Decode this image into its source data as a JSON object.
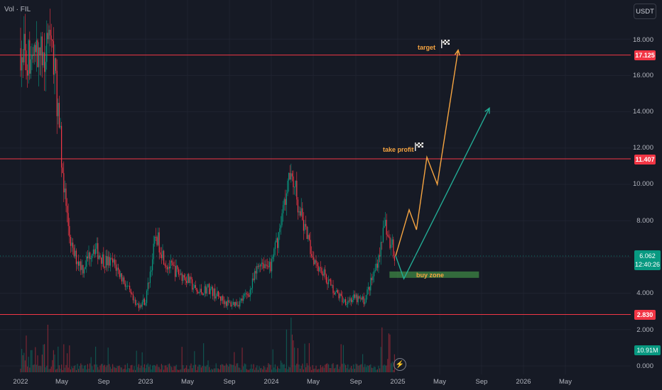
{
  "top_label": "Vol · FIL",
  "currency": "USDT",
  "chart_data": {
    "type": "candlestick",
    "y_axis": {
      "ticks": [
        "18.000",
        "16.000",
        "14.000",
        "12.000",
        "10.000",
        "8.000",
        "4.000",
        "2.000",
        "0.000"
      ]
    },
    "x_axis": {
      "ticks": [
        "2022",
        "May",
        "Sep",
        "2023",
        "May",
        "Sep",
        "2024",
        "May",
        "Sep",
        "2025",
        "May",
        "Sep",
        "2026",
        "May"
      ]
    },
    "price_path": [
      [
        "2022-01",
        17.5
      ],
      [
        "2022-02",
        16.8
      ],
      [
        "2022-03",
        17.2
      ],
      [
        "2022-04",
        17.6
      ],
      [
        "2022-04-20",
        14.0
      ],
      [
        "2022-05-05",
        10.0
      ],
      [
        "2022-05-20",
        7.5
      ],
      [
        "2022-06",
        6.2
      ],
      [
        "2022-07",
        5.4
      ],
      [
        "2022-08",
        6.6
      ],
      [
        "2022-09",
        5.8
      ],
      [
        "2022-10",
        5.6
      ],
      [
        "2022-11",
        4.6
      ],
      [
        "2022-12",
        3.3
      ],
      [
        "2023-01",
        3.6
      ],
      [
        "2023-02",
        7.2
      ],
      [
        "2023-03",
        5.6
      ],
      [
        "2023-04",
        5.2
      ],
      [
        "2023-05",
        4.8
      ],
      [
        "2023-06",
        4.0
      ],
      [
        "2023-07",
        4.3
      ],
      [
        "2023-08",
        3.8
      ],
      [
        "2023-09",
        3.4
      ],
      [
        "2023-10",
        3.5
      ],
      [
        "2023-11",
        4.1
      ],
      [
        "2023-12",
        5.8
      ],
      [
        "2024-01",
        5.4
      ],
      [
        "2024-02",
        7.8
      ],
      [
        "2024-03",
        10.8
      ],
      [
        "2024-04",
        8.0
      ],
      [
        "2024-05",
        6.1
      ],
      [
        "2024-06",
        5.2
      ],
      [
        "2024-07",
        4.2
      ],
      [
        "2024-08",
        3.6
      ],
      [
        "2024-09",
        3.7
      ],
      [
        "2024-10",
        3.6
      ],
      [
        "2024-11",
        5.2
      ],
      [
        "2024-12",
        7.6
      ],
      [
        "2025-01",
        6.062
      ]
    ],
    "horizontal_levels": [
      {
        "value": 17.125,
        "label": "17.125",
        "color": "#f23645"
      },
      {
        "value": 11.407,
        "label": "11.407",
        "color": "#f23645"
      },
      {
        "value": 2.83,
        "label": "2.830",
        "color": "#f23645"
      }
    ],
    "current_price": {
      "value": "6.062",
      "countdown": "12:40:26",
      "color": "#089981"
    },
    "volume_label": "10.91M",
    "projections": [
      {
        "name": "orange",
        "color": "#f7a541",
        "points": [
          [
            "2025-01",
            6.062
          ],
          [
            "2025-02-10",
            8.6
          ],
          [
            "2025-03",
            7.5
          ],
          [
            "2025-04",
            11.5
          ],
          [
            "2025-05",
            10.0
          ],
          [
            "2025-07",
            17.4
          ]
        ]
      },
      {
        "name": "teal",
        "color": "#22ab94",
        "points": [
          [
            "2025-01",
            6.062
          ],
          [
            "2025-01-25",
            4.8
          ],
          [
            "2025-10",
            14.2
          ]
        ]
      }
    ],
    "buy_zone": {
      "label": "buy zone",
      "from": 4.85,
      "to": 5.2,
      "start": "2024-12",
      "end": "2025-09"
    },
    "annotations": {
      "target": "target",
      "take_profit": "take profit"
    }
  }
}
